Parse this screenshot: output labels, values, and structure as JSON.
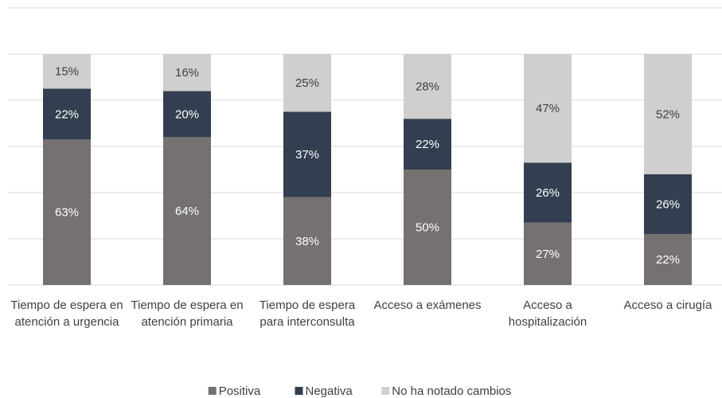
{
  "chart_data": {
    "type": "stacked_bar",
    "categories": [
      "Tiempo de espera en atención a urgencia",
      "Tiempo de espera en atención primaria",
      "Tiempo de espera para interconsulta",
      "Acceso a exámenes",
      "Acceso a hospitalización",
      "Acceso a cirugía"
    ],
    "series": [
      {
        "name": "Positiva",
        "color": "#767171",
        "values": [
          63,
          64,
          38,
          50,
          27,
          22
        ],
        "value_labels": [
          "63%",
          "64%",
          "38%",
          "50%",
          "27%",
          "22%"
        ]
      },
      {
        "name": "Negativa",
        "color": "#333f50",
        "values": [
          22,
          20,
          37,
          22,
          26,
          26
        ],
        "value_labels": [
          "22%",
          "20%",
          "37%",
          "22%",
          "26%",
          "26%"
        ]
      },
      {
        "name": "No ha notado cambios",
        "color": "#d0cece",
        "values": [
          15,
          16,
          25,
          28,
          47,
          52
        ],
        "value_labels": [
          "15%",
          "16%",
          "25%",
          "28%",
          "47%",
          "52%"
        ]
      }
    ],
    "ylim": [
      0,
      120
    ],
    "yticks": [
      0,
      20,
      40,
      60,
      80,
      100,
      120
    ],
    "grid": true,
    "legend": "bottom"
  }
}
